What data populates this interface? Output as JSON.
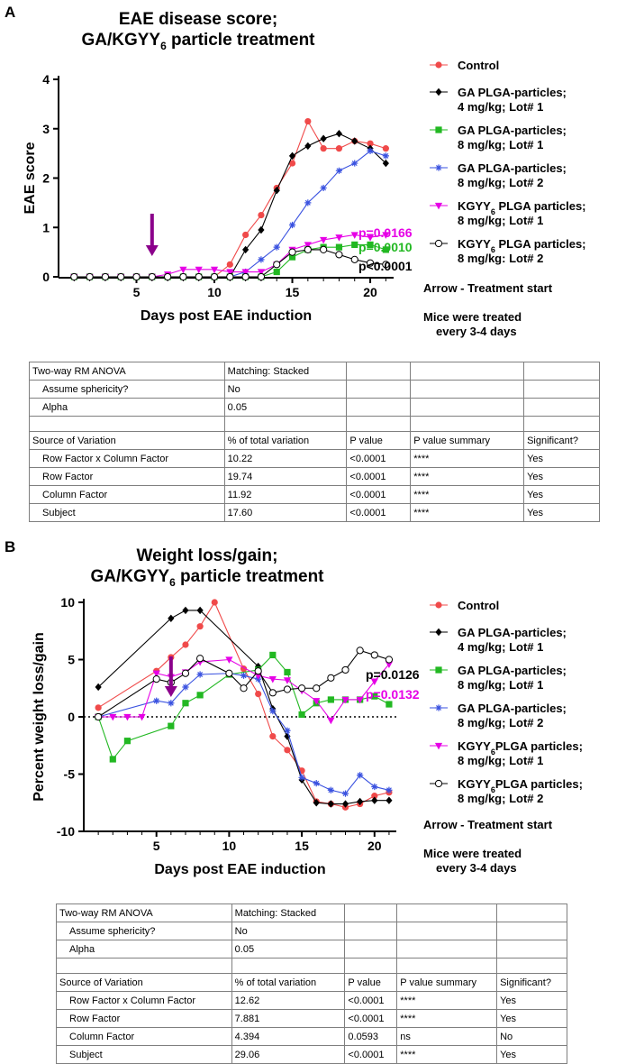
{
  "figure": {
    "panelA_letter": "A",
    "panelB_letter": "B",
    "panelA_title": [
      "EAE disease score;",
      "GA/KGYY",
      "6",
      " particle treatment"
    ],
    "panelB_title": [
      "Weight loss/gain;",
      "GA/KGYY",
      "6",
      " particle treatment"
    ],
    "note_arrow": "Arrow - Treatment start",
    "note_treated": [
      "Mice were treated",
      "every 3-4 days"
    ]
  },
  "legend_panelA": [
    {
      "lines": [
        "Control"
      ],
      "color": "#f04a4a",
      "marker": "circle"
    },
    {
      "lines": [
        "GA PLGA-particles;",
        "4 mg/kg; Lot# 1"
      ],
      "color": "#000000",
      "marker": "diamond"
    },
    {
      "lines": [
        "GA PLGA-particles;",
        "8 mg/kg; Lot# 1"
      ],
      "color": "#22b822",
      "marker": "square"
    },
    {
      "lines": [
        "GA PLGA-particles;",
        "8 mg/kg; Lot# 2"
      ],
      "color": "#3a52e0",
      "marker": "star"
    },
    {
      "lines": [
        "KGYY6 PLGA particles;",
        "8 mg/kg; Lot# 1"
      ],
      "color": "#e600e6",
      "marker": "triangle"
    },
    {
      "lines": [
        "KGYY6 PLGA particles;",
        "8 mg/kg: Lot# 2"
      ],
      "color": "#000000",
      "marker": "open-circle"
    }
  ],
  "legend_panelB": [
    {
      "lines": [
        "Control"
      ],
      "color": "#f04a4a",
      "marker": "circle"
    },
    {
      "lines": [
        "GA PLGA-particles;",
        "4 mg/kg; Lot# 1"
      ],
      "color": "#000000",
      "marker": "diamond"
    },
    {
      "lines": [
        "GA PLGA-particles;",
        "8 mg/kg; Lot# 1"
      ],
      "color": "#22b822",
      "marker": "square"
    },
    {
      "lines": [
        "GA PLGA-particles;",
        "8 mg/kg; Lot# 2"
      ],
      "color": "#3a52e0",
      "marker": "star"
    },
    {
      "lines": [
        "KGYY6PLGA particles;",
        "8 mg/kg; Lot# 1"
      ],
      "color": "#e600e6",
      "marker": "triangle"
    },
    {
      "lines": [
        "KGYY6PLGA particles;",
        "8 mg/kg; Lot# 2"
      ],
      "color": "#000000",
      "marker": "open-circle"
    }
  ],
  "chart_data": [
    {
      "type": "line",
      "title": "EAE disease score; GA/KGYY6 particle treatment",
      "xlabel": "Days post EAE induction",
      "ylabel": "EAE score",
      "xlim": [
        0,
        21.5
      ],
      "ylim": [
        0,
        4
      ],
      "xticks": [
        5,
        10,
        15,
        20
      ],
      "yticks": [
        0,
        1,
        2,
        3,
        4
      ],
      "arrow_day": 6,
      "annotations": [
        {
          "text": "p=0.0166",
          "color": "#e600e6"
        },
        {
          "text": "p=0.0010",
          "color": "#22b822"
        },
        {
          "text": "p<0.0001",
          "color": "#000000"
        }
      ],
      "series": [
        {
          "name": "Control",
          "color": "#f04a4a",
          "marker": "circle",
          "x": [
            1,
            2,
            3,
            4,
            5,
            6,
            7,
            8,
            9,
            10,
            11,
            12,
            13,
            14,
            15,
            16,
            17,
            18,
            19,
            20,
            21
          ],
          "y": [
            0,
            0,
            0,
            0,
            0,
            0,
            0,
            0,
            0,
            0,
            0.25,
            0.85,
            1.25,
            1.8,
            2.3,
            3.15,
            2.6,
            2.6,
            2.75,
            2.7,
            2.6
          ]
        },
        {
          "name": "GA PLGA-particles; 4 mg/kg; Lot# 1",
          "color": "#000000",
          "marker": "diamond",
          "x": [
            1,
            2,
            3,
            4,
            5,
            6,
            7,
            8,
            9,
            10,
            11,
            12,
            13,
            14,
            15,
            16,
            17,
            18,
            19,
            20,
            21
          ],
          "y": [
            0,
            0,
            0,
            0,
            0,
            0,
            0,
            0,
            0,
            0,
            0,
            0.55,
            0.95,
            1.75,
            2.45,
            2.65,
            2.8,
            2.9,
            2.75,
            2.6,
            2.3
          ]
        },
        {
          "name": "GA PLGA-particles; 8 mg/kg; Lot# 1",
          "color": "#22b822",
          "marker": "square",
          "x": [
            1,
            2,
            3,
            4,
            5,
            6,
            7,
            8,
            9,
            10,
            11,
            12,
            13,
            14,
            15,
            16,
            17,
            18,
            19,
            20,
            21
          ],
          "y": [
            0,
            0,
            0,
            0,
            0,
            0,
            0,
            0,
            0,
            0,
            0,
            0,
            0,
            0.1,
            0.4,
            0.55,
            0.6,
            0.6,
            0.65,
            0.65,
            0.55
          ]
        },
        {
          "name": "GA PLGA-particles; 8 mg/kg; Lot# 2",
          "color": "#3a52e0",
          "marker": "star",
          "x": [
            1,
            2,
            3,
            4,
            5,
            6,
            7,
            8,
            9,
            10,
            11,
            12,
            13,
            14,
            15,
            16,
            17,
            18,
            19,
            20,
            21
          ],
          "y": [
            0,
            0,
            0,
            0,
            0,
            0,
            0,
            0,
            0,
            0,
            0,
            0.1,
            0.35,
            0.6,
            1.05,
            1.5,
            1.8,
            2.15,
            2.3,
            2.55,
            2.45
          ]
        },
        {
          "name": "KGYY6 PLGA particles; 8 mg/kg; Lot# 1",
          "color": "#e600e6",
          "marker": "triangle",
          "x": [
            1,
            2,
            3,
            4,
            5,
            6,
            7,
            8,
            9,
            10,
            11,
            12,
            13,
            14,
            15,
            16,
            17,
            18,
            19,
            20,
            21
          ],
          "y": [
            0,
            0,
            0,
            0,
            0,
            0,
            0.05,
            0.15,
            0.15,
            0.15,
            0.1,
            0.1,
            0.1,
            0.25,
            0.55,
            0.65,
            0.75,
            0.8,
            0.85,
            0.8,
            0.85
          ]
        },
        {
          "name": "KGYY6 PLGA particles; 8 mg/kg: Lot# 2",
          "color": "#000000",
          "marker": "open-circle",
          "x": [
            1,
            2,
            3,
            4,
            5,
            6,
            7,
            8,
            9,
            10,
            11,
            12,
            13,
            14,
            15,
            16,
            17,
            18,
            19,
            20,
            21
          ],
          "y": [
            0,
            0,
            0,
            0,
            0,
            0,
            0,
            0,
            0,
            0,
            0,
            0,
            0,
            0.25,
            0.5,
            0.55,
            0.55,
            0.45,
            0.35,
            0.28,
            0.25
          ]
        }
      ]
    },
    {
      "type": "line",
      "title": "Weight loss/gain; GA/KGYY6 particle treatment",
      "xlabel": "Days post EAE induction",
      "ylabel": "Percent weight loss/gain",
      "xlim": [
        0,
        21.5
      ],
      "ylim": [
        -10,
        10
      ],
      "xticks": [
        5,
        10,
        15,
        20
      ],
      "yticks": [
        -10,
        -5,
        0,
        5,
        10
      ],
      "arrow_day": 6,
      "annotations": [
        {
          "text": "p=0.0126",
          "color": "#000000"
        },
        {
          "text": "p=0.0132",
          "color": "#e600e6"
        }
      ],
      "series": [
        {
          "name": "Control",
          "color": "#f04a4a",
          "marker": "circle",
          "x": [
            1,
            5,
            6,
            7,
            8,
            9,
            11,
            12,
            13,
            14,
            15,
            16,
            17,
            18,
            19,
            20,
            21
          ],
          "y": [
            0.8,
            4.0,
            5.2,
            6.3,
            7.9,
            10.0,
            4.2,
            2.0,
            -1.7,
            -2.9,
            -4.7,
            -7.4,
            -7.6,
            -7.9,
            -7.6,
            -6.9,
            -6.6
          ]
        },
        {
          "name": "GA PLGA-particles; 4 mg/kg; Lot# 1",
          "color": "#000000",
          "marker": "diamond",
          "x": [
            1,
            6,
            7,
            8,
            12,
            13,
            14,
            15,
            16,
            17,
            18,
            19,
            20,
            21
          ],
          "y": [
            2.6,
            8.6,
            9.3,
            9.3,
            4.4,
            0.7,
            -1.7,
            -5.5,
            -7.5,
            -7.6,
            -7.6,
            -7.4,
            -7.3,
            -7.3
          ]
        },
        {
          "name": "GA PLGA-particles; 8 mg/kg; Lot# 1",
          "color": "#22b822",
          "marker": "square",
          "x": [
            1,
            2,
            3,
            6,
            7,
            8,
            10,
            12,
            13,
            14,
            15,
            16,
            17,
            18,
            19,
            20,
            21
          ],
          "y": [
            0,
            -3.7,
            -2.1,
            -0.8,
            1.2,
            1.9,
            3.7,
            4.1,
            5.4,
            3.9,
            0.2,
            1.2,
            1.5,
            1.5,
            1.5,
            1.8,
            1.1
          ]
        },
        {
          "name": "GA PLGA-particles; 8 mg/kg; Lot# 2",
          "color": "#3a52e0",
          "marker": "star",
          "x": [
            1,
            5,
            6,
            7,
            8,
            10,
            11,
            12,
            13,
            14,
            15,
            16,
            17,
            18,
            19,
            20,
            21
          ],
          "y": [
            0,
            1.4,
            1.2,
            2.6,
            3.7,
            3.8,
            3.6,
            3.3,
            0.5,
            -1.2,
            -5.3,
            -5.8,
            -6.4,
            -6.7,
            -5.1,
            -6.1,
            -6.4
          ]
        },
        {
          "name": "KGYY6 PLGA particles; 8 mg/kg; Lot# 1",
          "color": "#e600e6",
          "marker": "triangle",
          "x": [
            1,
            2,
            3,
            4,
            5,
            6,
            7,
            8,
            10,
            12,
            13,
            14,
            15,
            16,
            17,
            18,
            19,
            20,
            21
          ],
          "y": [
            0,
            0,
            0,
            0,
            3.8,
            3.5,
            3.9,
            4.8,
            5.0,
            3.6,
            3.3,
            3.2,
            2.3,
            1.4,
            -0.3,
            1.5,
            1.5,
            3.1,
            4.6
          ]
        },
        {
          "name": "KGYY6 PLGA particles; 8 mg/kg; Lot# 2",
          "color": "#000000",
          "marker": "open-circle",
          "x": [
            1,
            5,
            6,
            7,
            8,
            10,
            11,
            12,
            13,
            14,
            15,
            16,
            17,
            18,
            19,
            20,
            21
          ],
          "y": [
            0,
            3.3,
            3.0,
            3.8,
            5.1,
            3.8,
            2.5,
            4.0,
            2.1,
            2.4,
            2.5,
            2.5,
            3.4,
            4.1,
            5.8,
            5.4,
            5.0
          ]
        }
      ]
    }
  ],
  "table_A": {
    "rows": [
      [
        "Two-way RM ANOVA",
        "Matching: Stacked",
        "",
        "",
        ""
      ],
      [
        "Assume sphericity?",
        "No",
        "",
        "",
        ""
      ],
      [
        "Alpha",
        "0.05",
        "",
        "",
        ""
      ],
      [
        "",
        "",
        "",
        "",
        ""
      ],
      [
        "Source of Variation",
        "% of total variation",
        "P value",
        "P value summary",
        "Significant?"
      ],
      [
        "Row Factor x Column Factor",
        "10.22",
        "<0.0001",
        "****",
        "Yes"
      ],
      [
        "Row Factor",
        "19.74",
        "<0.0001",
        "****",
        "Yes"
      ],
      [
        "Column Factor",
        "11.92",
        "<0.0001",
        "****",
        "Yes"
      ],
      [
        "Subject",
        "17.60",
        "<0.0001",
        "****",
        "Yes"
      ]
    ]
  },
  "table_B": {
    "rows": [
      [
        "Two-way RM ANOVA",
        "Matching: Stacked",
        "",
        "",
        ""
      ],
      [
        "Assume sphericity?",
        "No",
        "",
        "",
        ""
      ],
      [
        "Alpha",
        "0.05",
        "",
        "",
        ""
      ],
      [
        "",
        "",
        "",
        "",
        ""
      ],
      [
        "Source of Variation",
        "% of total variation",
        "P value",
        "P value summary",
        "Significant?"
      ],
      [
        "Row Factor x Column Factor",
        "12.62",
        "<0.0001",
        "****",
        "Yes"
      ],
      [
        "Row Factor",
        "7.881",
        "<0.0001",
        "****",
        "Yes"
      ],
      [
        "Column Factor",
        "4.394",
        "0.0593",
        "ns",
        "No"
      ],
      [
        "Subject",
        "29.06",
        "<0.0001",
        "****",
        "Yes"
      ]
    ]
  }
}
